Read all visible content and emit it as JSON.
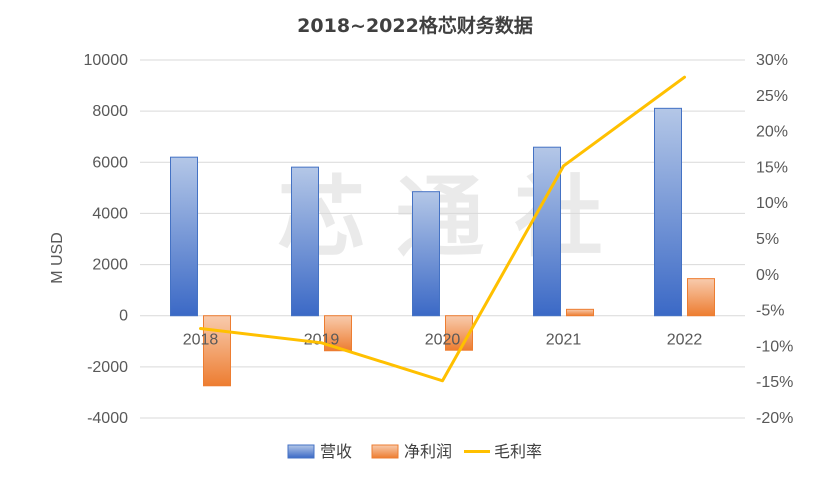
{
  "chart_data": {
    "type": "bar",
    "title": "2018~2022格芯财务数据",
    "ylabel": "M USD",
    "categories": [
      "2018",
      "2019",
      "2020",
      "2021",
      "2022"
    ],
    "ylim": [
      -4000,
      10000
    ],
    "yticks": [
      "10000",
      "8000",
      "6000",
      "4000",
      "2000",
      "0",
      "-2000",
      "-4000"
    ],
    "y2lim": [
      -20,
      30
    ],
    "y2ticks": [
      "30%",
      "25%",
      "20%",
      "15%",
      "10%",
      "5%",
      "0%",
      "-5%",
      "-10%",
      "-15%",
      "-20%"
    ],
    "series": [
      {
        "name": "营收",
        "type": "bar",
        "axis": "left",
        "values": [
          6200,
          5810,
          4850,
          6590,
          8110
        ]
      },
      {
        "name": "净利润",
        "type": "bar",
        "axis": "left",
        "values": [
          -2740,
          -1370,
          -1350,
          250,
          1450
        ]
      },
      {
        "name": "毛利率",
        "type": "line",
        "axis": "right",
        "values": [
          -7.5,
          -9.5,
          -14.8,
          15.2,
          27.6
        ]
      }
    ],
    "grid": true,
    "legend": "bottom",
    "colors": {
      "revenue": "#4472c4",
      "net_income": "#ed7d31",
      "gross_margin": "#ffc000",
      "grid": "#d9d9d9"
    }
  },
  "watermark": "芯 通 社"
}
